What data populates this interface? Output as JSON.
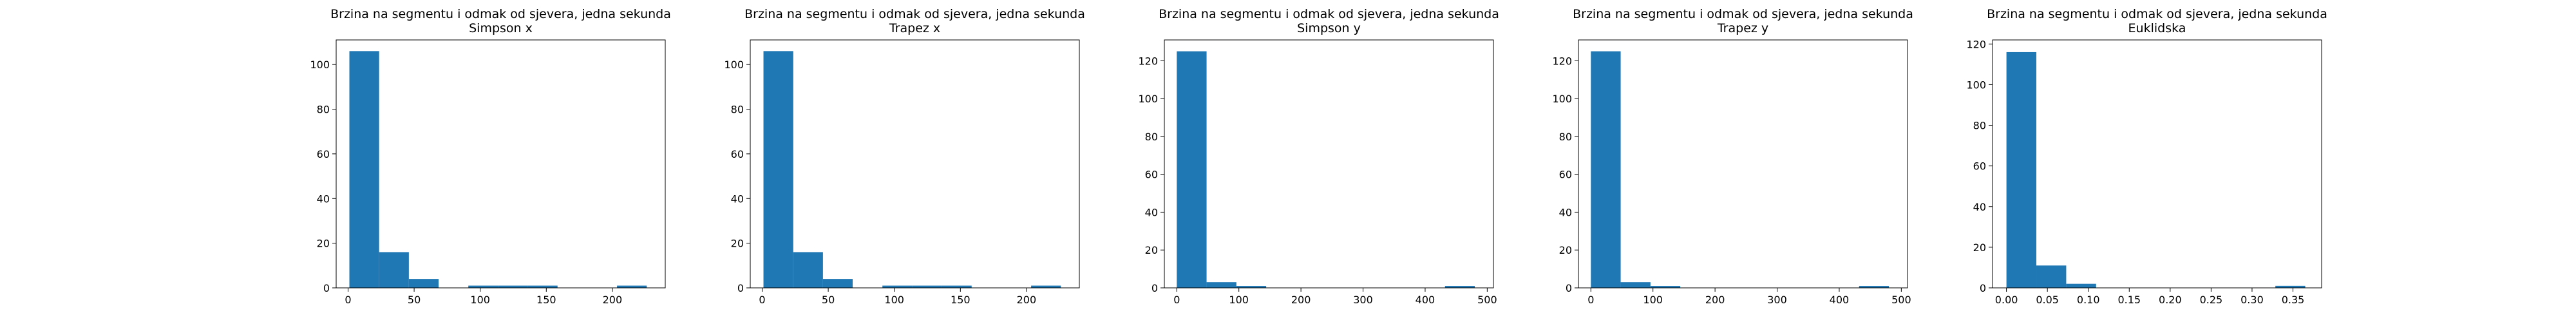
{
  "chart_data": [
    {
      "type": "bar",
      "title": "Brzina na segmentu i odmak od sjevera, jedna sekunda",
      "subtitle": "Simpson x",
      "color": "#1f77b4",
      "xlim": [
        -9,
        240
      ],
      "ylim": [
        0,
        111
      ],
      "xticks": [
        0,
        50,
        100,
        150,
        200
      ],
      "yticks": [
        0,
        20,
        40,
        60,
        80,
        100
      ],
      "bins": [
        {
          "x0": 1,
          "x1": 23.5,
          "count": 106
        },
        {
          "x0": 23.5,
          "x1": 46,
          "count": 16
        },
        {
          "x0": 46,
          "x1": 68.5,
          "count": 4
        },
        {
          "x0": 68.5,
          "x1": 91,
          "count": 0
        },
        {
          "x0": 91,
          "x1": 113.5,
          "count": 1
        },
        {
          "x0": 113.5,
          "x1": 136,
          "count": 1
        },
        {
          "x0": 136,
          "x1": 158.5,
          "count": 1
        },
        {
          "x0": 158.5,
          "x1": 181,
          "count": 0
        },
        {
          "x0": 181,
          "x1": 203.5,
          "count": 0
        },
        {
          "x0": 203.5,
          "x1": 226,
          "count": 1
        }
      ]
    },
    {
      "type": "bar",
      "title": "Brzina na segmentu i odmak od sjevera, jedna sekunda",
      "subtitle": "Trapez x",
      "color": "#1f77b4",
      "xlim": [
        -9,
        240
      ],
      "ylim": [
        0,
        111
      ],
      "xticks": [
        0,
        50,
        100,
        150,
        200
      ],
      "yticks": [
        0,
        20,
        40,
        60,
        80,
        100
      ],
      "bins": [
        {
          "x0": 1,
          "x1": 23.5,
          "count": 106
        },
        {
          "x0": 23.5,
          "x1": 46,
          "count": 16
        },
        {
          "x0": 46,
          "x1": 68.5,
          "count": 4
        },
        {
          "x0": 68.5,
          "x1": 91,
          "count": 0
        },
        {
          "x0": 91,
          "x1": 113.5,
          "count": 1
        },
        {
          "x0": 113.5,
          "x1": 136,
          "count": 1
        },
        {
          "x0": 136,
          "x1": 158.5,
          "count": 1
        },
        {
          "x0": 158.5,
          "x1": 181,
          "count": 0
        },
        {
          "x0": 181,
          "x1": 203.5,
          "count": 0
        },
        {
          "x0": 203.5,
          "x1": 226,
          "count": 1
        }
      ]
    },
    {
      "type": "bar",
      "title": "Brzina na segmentu i odmak od sjevera, jedna sekunda",
      "subtitle": "Simpson y",
      "color": "#1f77b4",
      "xlim": [
        -20,
        510
      ],
      "ylim": [
        0,
        131
      ],
      "xticks": [
        0,
        100,
        200,
        300,
        400,
        500
      ],
      "yticks": [
        0,
        20,
        40,
        60,
        80,
        100,
        120
      ],
      "bins": [
        {
          "x0": 0,
          "x1": 48,
          "count": 125
        },
        {
          "x0": 48,
          "x1": 96,
          "count": 3
        },
        {
          "x0": 96,
          "x1": 144,
          "count": 1
        },
        {
          "x0": 144,
          "x1": 192,
          "count": 0
        },
        {
          "x0": 192,
          "x1": 240,
          "count": 0
        },
        {
          "x0": 240,
          "x1": 288,
          "count": 0
        },
        {
          "x0": 288,
          "x1": 336,
          "count": 0
        },
        {
          "x0": 336,
          "x1": 384,
          "count": 0
        },
        {
          "x0": 384,
          "x1": 432,
          "count": 0
        },
        {
          "x0": 432,
          "x1": 480,
          "count": 1
        }
      ]
    },
    {
      "type": "bar",
      "title": "Brzina na segmentu i odmak od sjevera, jedna sekunda",
      "subtitle": "Trapez y",
      "color": "#1f77b4",
      "xlim": [
        -20,
        510
      ],
      "ylim": [
        0,
        131
      ],
      "xticks": [
        0,
        100,
        200,
        300,
        400,
        500
      ],
      "yticks": [
        0,
        20,
        40,
        60,
        80,
        100,
        120
      ],
      "bins": [
        {
          "x0": 0,
          "x1": 48,
          "count": 125
        },
        {
          "x0": 48,
          "x1": 96,
          "count": 3
        },
        {
          "x0": 96,
          "x1": 144,
          "count": 1
        },
        {
          "x0": 144,
          "x1": 192,
          "count": 0
        },
        {
          "x0": 192,
          "x1": 240,
          "count": 0
        },
        {
          "x0": 240,
          "x1": 288,
          "count": 0
        },
        {
          "x0": 288,
          "x1": 336,
          "count": 0
        },
        {
          "x0": 336,
          "x1": 384,
          "count": 0
        },
        {
          "x0": 384,
          "x1": 432,
          "count": 0
        },
        {
          "x0": 432,
          "x1": 480,
          "count": 1
        }
      ]
    },
    {
      "type": "bar",
      "title": "Brzina na segmentu i odmak od sjevera, jedna sekunda",
      "subtitle": "Euklidska",
      "color": "#1f77b4",
      "xlim": [
        -0.017,
        0.385
      ],
      "ylim": [
        0,
        122
      ],
      "xticks": [
        "0.00",
        "0.05",
        "0.10",
        "0.15",
        "0.20",
        "0.25",
        "0.30",
        "0.35"
      ],
      "yticks": [
        0,
        20,
        40,
        60,
        80,
        100,
        120
      ],
      "bins": [
        {
          "x0": 0,
          "x1": 0.0365,
          "count": 116
        },
        {
          "x0": 0.0365,
          "x1": 0.073,
          "count": 11
        },
        {
          "x0": 0.073,
          "x1": 0.1095,
          "count": 2
        },
        {
          "x0": 0.1095,
          "x1": 0.146,
          "count": 0
        },
        {
          "x0": 0.146,
          "x1": 0.1825,
          "count": 0
        },
        {
          "x0": 0.1825,
          "x1": 0.219,
          "count": 0
        },
        {
          "x0": 0.219,
          "x1": 0.2555,
          "count": 0
        },
        {
          "x0": 0.2555,
          "x1": 0.292,
          "count": 0
        },
        {
          "x0": 0.292,
          "x1": 0.3285,
          "count": 0
        },
        {
          "x0": 0.3285,
          "x1": 0.365,
          "count": 1
        }
      ]
    }
  ]
}
